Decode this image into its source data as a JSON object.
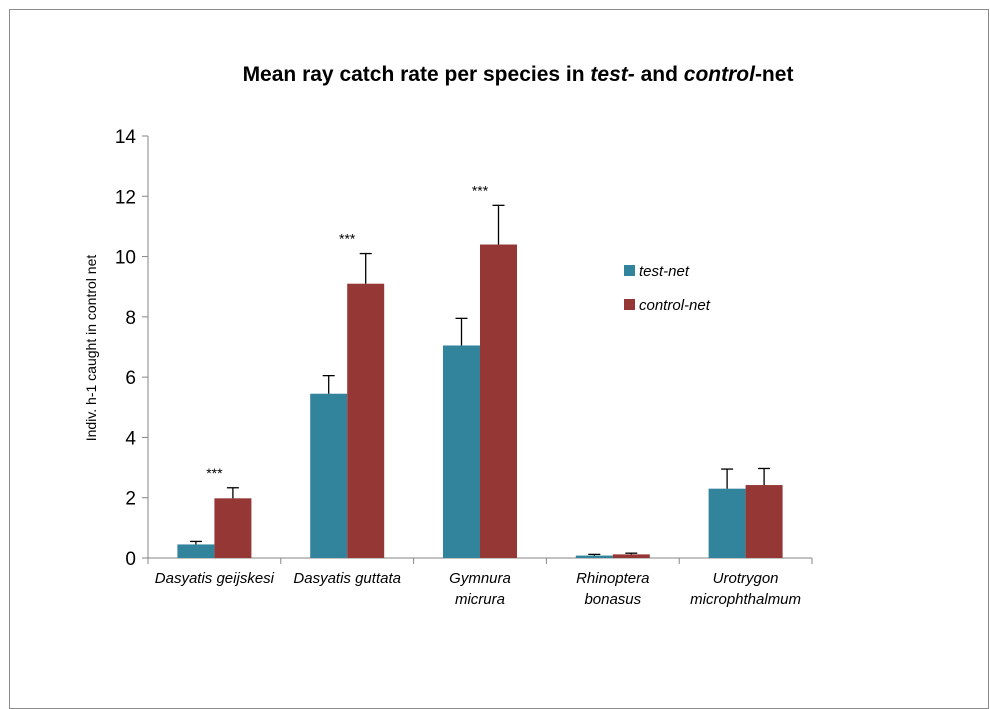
{
  "chart_data": {
    "type": "bar",
    "title_parts": [
      {
        "text": "Mean ray catch rate per species in ",
        "italic": false
      },
      {
        "text": "test-",
        "italic": true
      },
      {
        "text": " and ",
        "italic": false
      },
      {
        "text": "control",
        "italic": true
      },
      {
        "text": "-net",
        "italic": false
      }
    ],
    "ylabel": "Indiv. h-1 caught in control net",
    "xlabel": "",
    "ylim": [
      0,
      14
    ],
    "yticks": [
      0,
      2,
      4,
      6,
      8,
      10,
      12,
      14
    ],
    "categories": [
      [
        "Dasyatis geijskesi"
      ],
      [
        "Dasyatis guttata"
      ],
      [
        "Gymnura",
        "micrura"
      ],
      [
        "Rhinoptera",
        "bonasus"
      ],
      [
        "Urotrygon",
        "microphthalmum"
      ]
    ],
    "series": [
      {
        "name": "test-net",
        "color": "#31849B",
        "values": [
          0.45,
          5.45,
          7.05,
          0.08,
          2.3
        ],
        "errors": [
          0.1,
          0.6,
          0.9,
          0.04,
          0.65
        ]
      },
      {
        "name": "control-net",
        "color": "#953735",
        "values": [
          1.98,
          9.1,
          10.4,
          0.12,
          2.42
        ],
        "errors": [
          0.35,
          1.0,
          1.3,
          0.04,
          0.55
        ]
      }
    ],
    "annotations": [
      "***",
      "***",
      "***",
      "",
      ""
    ],
    "legend_position": "right",
    "grid": false
  }
}
